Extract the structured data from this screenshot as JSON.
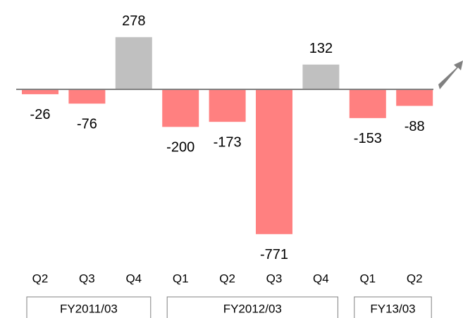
{
  "chart_data": {
    "type": "bar",
    "categories": [
      "Q2",
      "Q3",
      "Q4",
      "Q1",
      "Q2",
      "Q3",
      "Q4",
      "Q1",
      "Q2"
    ],
    "values": [
      -26,
      -76,
      278,
      -200,
      -173,
      -771,
      132,
      -153,
      -88
    ],
    "colors": [
      "#ff8080",
      "#ff8080",
      "#c0c0c0",
      "#ff8080",
      "#ff8080",
      "#ff8080",
      "#c0c0c0",
      "#ff8080",
      "#ff8080"
    ],
    "groups": [
      {
        "name": "FY2011/03",
        "span": 3
      },
      {
        "name": "FY2012/03",
        "span": 4
      },
      {
        "name": "FY13/03",
        "span": 2
      }
    ]
  }
}
